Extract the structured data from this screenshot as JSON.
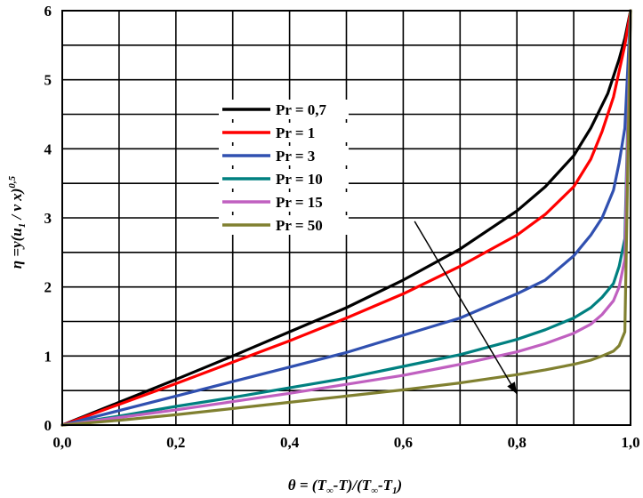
{
  "chart_data": {
    "type": "line",
    "title": "",
    "xlabel": "θ = (T∞-T)/(T∞-T1)",
    "ylabel": "η = y(u1 / ν x)^0,5",
    "xlim": [
      0,
      1
    ],
    "ylim": [
      0,
      6
    ],
    "grid": true,
    "legend_position": "upper-left-center",
    "x_ticks": [
      "0,0",
      "0,2",
      "0,4",
      "0,6",
      "0,8",
      "1,0"
    ],
    "y_ticks": [
      "0",
      "1",
      "2",
      "3",
      "4",
      "5",
      "6"
    ],
    "series": [
      {
        "name": "Pr = 0,7",
        "color": "#000000",
        "x": [
          0,
          0.1,
          0.2,
          0.3,
          0.4,
          0.5,
          0.6,
          0.7,
          0.8,
          0.85,
          0.9,
          0.93,
          0.96,
          0.98,
          0.99,
          1.0
        ],
        "y": [
          0,
          0.33,
          0.66,
          1.0,
          1.35,
          1.7,
          2.1,
          2.55,
          3.1,
          3.45,
          3.9,
          4.3,
          4.8,
          5.3,
          5.6,
          6.0
        ]
      },
      {
        "name": "Pr = 1",
        "color": "#ff0000",
        "x": [
          0,
          0.1,
          0.2,
          0.3,
          0.4,
          0.5,
          0.6,
          0.7,
          0.8,
          0.85,
          0.9,
          0.93,
          0.95,
          0.97,
          0.99,
          1.0
        ],
        "y": [
          0,
          0.3,
          0.6,
          0.91,
          1.22,
          1.55,
          1.9,
          2.3,
          2.75,
          3.05,
          3.45,
          3.85,
          4.25,
          4.75,
          5.5,
          6.0
        ]
      },
      {
        "name": "Pr = 3",
        "color": "#3050b0",
        "x": [
          0,
          0.1,
          0.2,
          0.3,
          0.4,
          0.5,
          0.6,
          0.7,
          0.8,
          0.85,
          0.9,
          0.93,
          0.95,
          0.97,
          0.98,
          0.99,
          1.0
        ],
        "y": [
          0,
          0.21,
          0.42,
          0.63,
          0.84,
          1.05,
          1.3,
          1.55,
          1.9,
          2.1,
          2.45,
          2.75,
          3.0,
          3.4,
          3.8,
          4.3,
          6.0
        ]
      },
      {
        "name": "Pr = 10",
        "color": "#008080",
        "x": [
          0,
          0.1,
          0.2,
          0.3,
          0.4,
          0.5,
          0.6,
          0.7,
          0.8,
          0.85,
          0.9,
          0.93,
          0.95,
          0.97,
          0.98,
          0.99,
          1.0
        ],
        "y": [
          0,
          0.13,
          0.27,
          0.4,
          0.54,
          0.68,
          0.85,
          1.02,
          1.24,
          1.38,
          1.55,
          1.7,
          1.85,
          2.05,
          2.3,
          2.7,
          6.0
        ]
      },
      {
        "name": "Pr = 15",
        "color": "#c060c0",
        "x": [
          0,
          0.1,
          0.2,
          0.3,
          0.4,
          0.5,
          0.6,
          0.7,
          0.8,
          0.85,
          0.9,
          0.93,
          0.95,
          0.97,
          0.98,
          0.99,
          1.0
        ],
        "y": [
          0,
          0.11,
          0.22,
          0.34,
          0.46,
          0.59,
          0.72,
          0.88,
          1.06,
          1.18,
          1.33,
          1.46,
          1.6,
          1.8,
          2.0,
          2.4,
          6.0
        ]
      },
      {
        "name": "Pr = 50",
        "color": "#808030",
        "x": [
          0,
          0.1,
          0.2,
          0.3,
          0.4,
          0.5,
          0.6,
          0.7,
          0.8,
          0.85,
          0.9,
          0.93,
          0.95,
          0.97,
          0.98,
          0.99,
          1.0
        ],
        "y": [
          0,
          0.07,
          0.15,
          0.24,
          0.33,
          0.42,
          0.51,
          0.61,
          0.73,
          0.8,
          0.88,
          0.94,
          1.0,
          1.07,
          1.15,
          1.35,
          6.0
        ]
      }
    ],
    "annotation": {
      "type": "arrow",
      "from": [
        0.62,
        2.95
      ],
      "to": [
        0.8,
        0.45
      ],
      "meaning": "increasing Pr"
    }
  }
}
